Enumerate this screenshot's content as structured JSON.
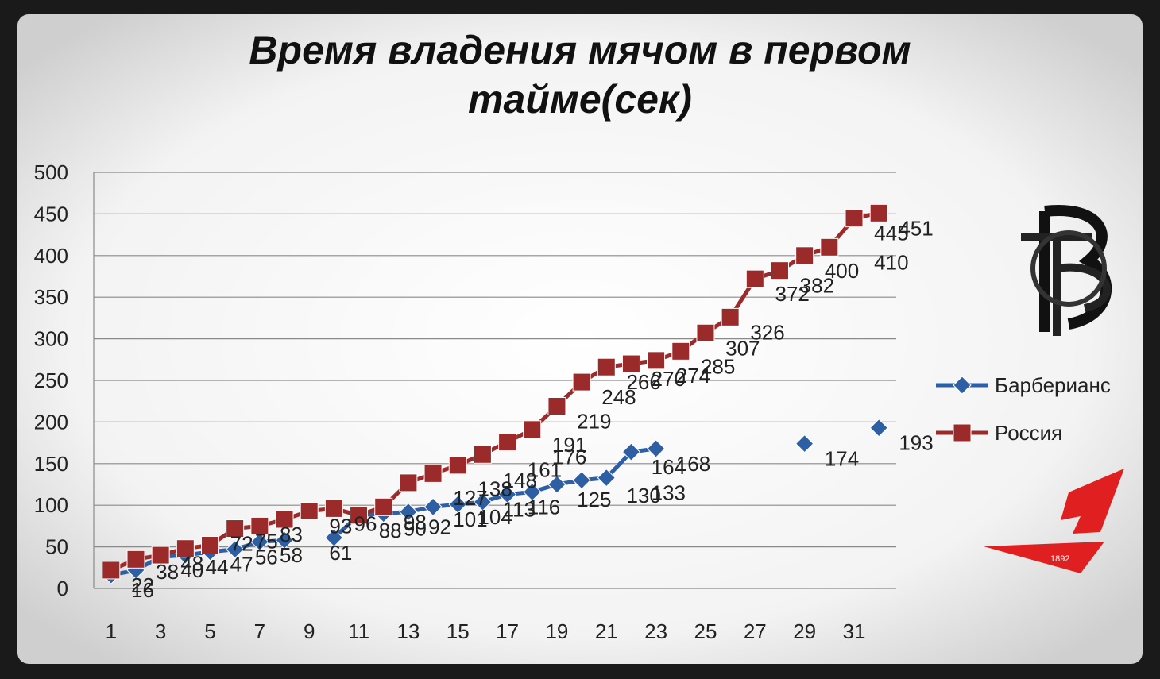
{
  "chart_data": {
    "type": "line",
    "title": "Время владения мячом в первом тайме(сек)",
    "xlabel": "",
    "ylabel": "",
    "ylim": [
      0,
      500
    ],
    "yticks": [
      0,
      50,
      100,
      150,
      200,
      250,
      300,
      350,
      400,
      450,
      500
    ],
    "xlim": [
      1,
      32
    ],
    "xticks": [
      1,
      3,
      5,
      7,
      9,
      11,
      13,
      15,
      17,
      19,
      21,
      23,
      25,
      27,
      29,
      31
    ],
    "grid": true,
    "legend_position": "right",
    "series": [
      {
        "name": "Барберианс",
        "color": "#2e5fa3",
        "marker": "diamond",
        "x": [
          1,
          2,
          3,
          4,
          5,
          6,
          7,
          8,
          9,
          10,
          11,
          12,
          13,
          14,
          15,
          16,
          17,
          18,
          19,
          20,
          21,
          22,
          23,
          24,
          25,
          26,
          27,
          28,
          29,
          30,
          31,
          32
        ],
        "values": [
          16,
          22,
          38,
          40,
          44,
          47,
          56,
          58,
          null,
          61,
          88,
          90,
          92,
          98,
          101,
          104,
          113,
          116,
          125,
          130,
          133,
          164,
          168,
          null,
          null,
          null,
          null,
          null,
          174,
          null,
          null,
          193
        ]
      },
      {
        "name": "Россия",
        "color": "#9b2a2a",
        "marker": "square",
        "x": [
          1,
          2,
          3,
          4,
          5,
          6,
          7,
          8,
          9,
          10,
          11,
          12,
          13,
          14,
          15,
          16,
          17,
          18,
          19,
          20,
          21,
          22,
          23,
          24,
          25,
          26,
          27,
          28,
          29,
          30,
          31,
          32
        ],
        "values": [
          22,
          35,
          40,
          48,
          52,
          72,
          75,
          83,
          93,
          96,
          88,
          98,
          127,
          138,
          148,
          161,
          176,
          191,
          219,
          248,
          266,
          270,
          274,
          285,
          307,
          326,
          372,
          382,
          400,
          410,
          445,
          451
        ]
      }
    ],
    "visible_data_labels": [
      {
        "text": "16",
        "x": 2,
        "y": 16,
        "series": 0
      },
      {
        "text": "22",
        "x": 2,
        "y": 22,
        "series": 1
      },
      {
        "text": "38",
        "x": 3,
        "y": 38,
        "series": 0
      },
      {
        "text": "40",
        "x": 4,
        "y": 40,
        "series": 0
      },
      {
        "text": "48",
        "x": 4,
        "y": 48,
        "series": 1
      },
      {
        "text": "44",
        "x": 5,
        "y": 44,
        "series": 0
      },
      {
        "text": "47",
        "x": 6,
        "y": 47,
        "series": 0
      },
      {
        "text": "72",
        "x": 6,
        "y": 72,
        "series": 1
      },
      {
        "text": "75",
        "x": 7,
        "y": 75,
        "series": 1
      },
      {
        "text": "56",
        "x": 7,
        "y": 56,
        "series": 0
      },
      {
        "text": "58",
        "x": 8,
        "y": 58,
        "series": 0
      },
      {
        "text": "83",
        "x": 8,
        "y": 83,
        "series": 1
      },
      {
        "text": "93",
        "x": 10,
        "y": 93,
        "series": 1
      },
      {
        "text": "61",
        "x": 10,
        "y": 61,
        "series": 0
      },
      {
        "text": "96",
        "x": 11,
        "y": 96,
        "series": 1
      },
      {
        "text": "88",
        "x": 12,
        "y": 88,
        "series": 0
      },
      {
        "text": "90",
        "x": 13,
        "y": 90,
        "series": 0
      },
      {
        "text": "98",
        "x": 13,
        "y": 98,
        "series": 0
      },
      {
        "text": "92",
        "x": 14,
        "y": 92,
        "series": 0
      },
      {
        "text": "127",
        "x": 15,
        "y": 127,
        "series": 1
      },
      {
        "text": "101",
        "x": 15,
        "y": 101,
        "series": 0
      },
      {
        "text": "138",
        "x": 16,
        "y": 138,
        "series": 1
      },
      {
        "text": "104",
        "x": 16,
        "y": 104,
        "series": 0
      },
      {
        "text": "148",
        "x": 17,
        "y": 148,
        "series": 1
      },
      {
        "text": "113",
        "x": 17,
        "y": 113,
        "series": 0
      },
      {
        "text": "161",
        "x": 18,
        "y": 161,
        "series": 1
      },
      {
        "text": "116",
        "x": 18,
        "y": 116,
        "series": 0
      },
      {
        "text": "176",
        "x": 19,
        "y": 176,
        "series": 1
      },
      {
        "text": "125",
        "x": 20,
        "y": 125,
        "series": 0
      },
      {
        "text": "191",
        "x": 19,
        "y": 191,
        "series": 1
      },
      {
        "text": "219",
        "x": 20,
        "y": 219,
        "series": 1
      },
      {
        "text": "130",
        "x": 22,
        "y": 130,
        "series": 0
      },
      {
        "text": "133",
        "x": 23,
        "y": 133,
        "series": 0
      },
      {
        "text": "248",
        "x": 21,
        "y": 248,
        "series": 1
      },
      {
        "text": "266",
        "x": 22,
        "y": 266,
        "series": 1
      },
      {
        "text": "270",
        "x": 23,
        "y": 270,
        "series": 1
      },
      {
        "text": "274",
        "x": 24,
        "y": 274,
        "series": 1
      },
      {
        "text": "164",
        "x": 23,
        "y": 164,
        "series": 0
      },
      {
        "text": "168",
        "x": 24,
        "y": 168,
        "series": 0
      },
      {
        "text": "285",
        "x": 25,
        "y": 285,
        "series": 1
      },
      {
        "text": "307",
        "x": 26,
        "y": 307,
        "series": 1
      },
      {
        "text": "326",
        "x": 27,
        "y": 326,
        "series": 1
      },
      {
        "text": "174",
        "x": 30,
        "y": 174,
        "series": 0
      },
      {
        "text": "372",
        "x": 28,
        "y": 372,
        "series": 1
      },
      {
        "text": "382",
        "x": 29,
        "y": 382,
        "series": 1
      },
      {
        "text": "400",
        "x": 30,
        "y": 400,
        "series": 1
      },
      {
        "text": "410",
        "x": 32,
        "y": 410,
        "series": 1
      },
      {
        "text": "445",
        "x": 32,
        "y": 445,
        "series": 1
      },
      {
        "text": "451",
        "x": 33,
        "y": 451,
        "series": 1
      },
      {
        "text": "193",
        "x": 33,
        "y": 193,
        "series": 0
      }
    ]
  },
  "logos": {
    "monogram": {
      "color": "#111111"
    },
    "red_logo": {
      "text": "1892",
      "color": "#e02020"
    }
  }
}
